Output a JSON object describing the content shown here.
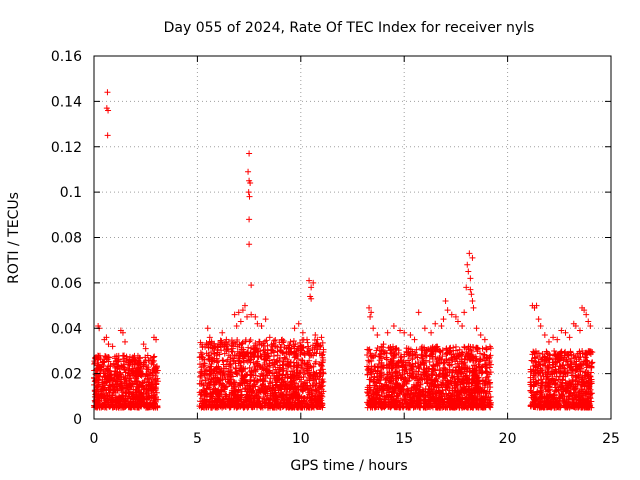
{
  "chart_data": {
    "type": "scatter",
    "title": "Day 055 of 2024, Rate Of TEC Index for receiver nyls",
    "xlabel": "GPS time / hours",
    "ylabel": "ROTI / TECUs",
    "xlim": [
      0,
      25
    ],
    "ylim": [
      0,
      0.16
    ],
    "x_ticks": [
      0,
      5,
      10,
      15,
      20,
      25
    ],
    "x_tick_labels": [
      "0",
      "5",
      "10",
      "15",
      "20",
      "25"
    ],
    "y_ticks": [
      0,
      0.02,
      0.04,
      0.06,
      0.08,
      0.1,
      0.12,
      0.14,
      0.16
    ],
    "y_tick_labels": [
      "0",
      "0.02",
      "0.04",
      "0.06",
      "0.08",
      "0.1",
      "0.12",
      "0.14",
      "0.16"
    ],
    "grid": true,
    "legend": "none",
    "marker": "+",
    "series_color": "#ff0000",
    "observation_windows": [
      {
        "start": 0.0,
        "end": 3.1,
        "typical_range": [
          0.005,
          0.028
        ]
      },
      {
        "start": 5.1,
        "end": 11.1,
        "typical_range": [
          0.005,
          0.035
        ]
      },
      {
        "start": 13.2,
        "end": 19.2,
        "typical_range": [
          0.005,
          0.032
        ]
      },
      {
        "start": 21.1,
        "end": 24.1,
        "typical_range": [
          0.005,
          0.03
        ]
      }
    ],
    "points": [
      [
        0.65,
        0.144
      ],
      [
        0.62,
        0.137
      ],
      [
        0.68,
        0.136
      ],
      [
        0.66,
        0.125
      ],
      [
        0.2,
        0.041
      ],
      [
        0.25,
        0.04
      ],
      [
        0.5,
        0.035
      ],
      [
        0.6,
        0.036
      ],
      [
        0.7,
        0.033
      ],
      [
        0.9,
        0.032
      ],
      [
        1.3,
        0.039
      ],
      [
        1.4,
        0.038
      ],
      [
        1.5,
        0.034
      ],
      [
        2.4,
        0.033
      ],
      [
        2.5,
        0.031
      ],
      [
        2.9,
        0.036
      ],
      [
        3.0,
        0.035
      ],
      [
        2.6,
        0.028
      ],
      [
        7.5,
        0.117
      ],
      [
        7.45,
        0.109
      ],
      [
        7.5,
        0.105
      ],
      [
        7.55,
        0.104
      ],
      [
        7.48,
        0.1
      ],
      [
        7.52,
        0.098
      ],
      [
        7.5,
        0.088
      ],
      [
        7.5,
        0.077
      ],
      [
        7.6,
        0.059
      ],
      [
        5.5,
        0.04
      ],
      [
        5.6,
        0.036
      ],
      [
        6.0,
        0.033
      ],
      [
        6.2,
        0.038
      ],
      [
        6.4,
        0.035
      ],
      [
        6.8,
        0.046
      ],
      [
        6.9,
        0.041
      ],
      [
        7.0,
        0.047
      ],
      [
        7.2,
        0.048
      ],
      [
        7.3,
        0.05
      ],
      [
        7.4,
        0.045
      ],
      [
        7.1,
        0.043
      ],
      [
        7.6,
        0.046
      ],
      [
        7.8,
        0.045
      ],
      [
        7.9,
        0.042
      ],
      [
        8.1,
        0.041
      ],
      [
        8.3,
        0.044
      ],
      [
        8.5,
        0.036
      ],
      [
        8.8,
        0.032
      ],
      [
        9.1,
        0.035
      ],
      [
        9.5,
        0.034
      ],
      [
        9.7,
        0.04
      ],
      [
        9.9,
        0.042
      ],
      [
        10.1,
        0.038
      ],
      [
        10.3,
        0.035
      ],
      [
        10.4,
        0.061
      ],
      [
        10.5,
        0.058
      ],
      [
        10.6,
        0.06
      ],
      [
        10.5,
        0.053
      ],
      [
        10.45,
        0.054
      ],
      [
        10.7,
        0.037
      ],
      [
        10.8,
        0.035
      ],
      [
        11.0,
        0.036
      ],
      [
        13.3,
        0.049
      ],
      [
        13.4,
        0.047
      ],
      [
        13.35,
        0.045
      ],
      [
        13.5,
        0.04
      ],
      [
        13.7,
        0.037
      ],
      [
        14.0,
        0.033
      ],
      [
        14.2,
        0.038
      ],
      [
        14.5,
        0.041
      ],
      [
        14.8,
        0.039
      ],
      [
        15.0,
        0.038
      ],
      [
        15.3,
        0.037
      ],
      [
        15.5,
        0.035
      ],
      [
        15.7,
        0.047
      ],
      [
        16.0,
        0.04
      ],
      [
        16.3,
        0.038
      ],
      [
        16.5,
        0.042
      ],
      [
        16.8,
        0.041
      ],
      [
        16.9,
        0.044
      ],
      [
        17.0,
        0.052
      ],
      [
        17.1,
        0.048
      ],
      [
        17.3,
        0.046
      ],
      [
        17.5,
        0.045
      ],
      [
        17.6,
        0.043
      ],
      [
        17.8,
        0.041
      ],
      [
        17.9,
        0.047
      ],
      [
        18.0,
        0.058
      ],
      [
        18.1,
        0.065
      ],
      [
        18.05,
        0.068
      ],
      [
        18.15,
        0.073
      ],
      [
        18.3,
        0.071
      ],
      [
        18.2,
        0.057
      ],
      [
        18.25,
        0.055
      ],
      [
        18.3,
        0.052
      ],
      [
        18.35,
        0.049
      ],
      [
        18.2,
        0.062
      ],
      [
        18.5,
        0.04
      ],
      [
        18.7,
        0.037
      ],
      [
        18.9,
        0.035
      ],
      [
        21.2,
        0.05
      ],
      [
        21.3,
        0.049
      ],
      [
        21.4,
        0.05
      ],
      [
        21.5,
        0.044
      ],
      [
        21.6,
        0.041
      ],
      [
        21.8,
        0.037
      ],
      [
        22.0,
        0.034
      ],
      [
        22.2,
        0.036
      ],
      [
        22.4,
        0.035
      ],
      [
        22.6,
        0.039
      ],
      [
        22.8,
        0.038
      ],
      [
        23.0,
        0.036
      ],
      [
        23.2,
        0.042
      ],
      [
        23.3,
        0.041
      ],
      [
        23.5,
        0.039
      ],
      [
        23.6,
        0.049
      ],
      [
        23.7,
        0.048
      ],
      [
        23.8,
        0.046
      ],
      [
        23.9,
        0.043
      ],
      [
        24.0,
        0.041
      ]
    ]
  }
}
